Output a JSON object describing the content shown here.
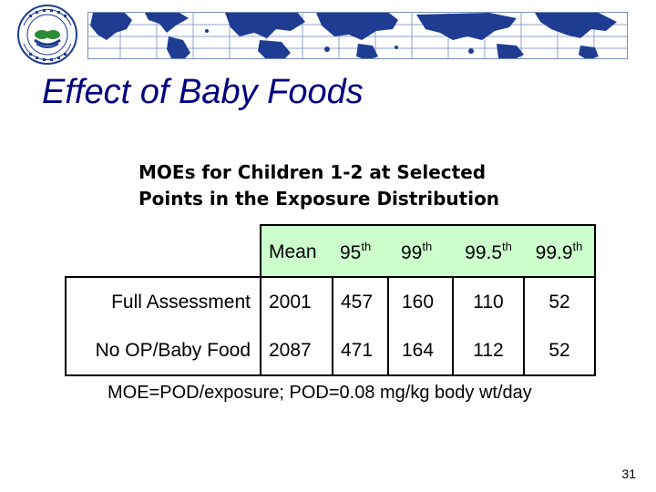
{
  "slide": {
    "title": "Effect of  Baby Foods",
    "page_number": "31"
  },
  "header": {
    "logo_icon": "epa-seal-icon",
    "banner_icon": "world-map-grid-icon",
    "colors": {
      "map_land": "#1f3c93",
      "map_grid": "#8da0cc",
      "title": "#000080"
    }
  },
  "table": {
    "caption_line1": "MOEs for Children 1-2 at Selected",
    "caption_line2": "Points in the Exposure Distribution",
    "header_fill": "#ccffcc",
    "columns": [
      {
        "base": "Mean",
        "sup": ""
      },
      {
        "base": "95",
        "sup": "th"
      },
      {
        "base": "99",
        "sup": "th"
      },
      {
        "base": "99.5",
        "sup": "th"
      },
      {
        "base": "99.9",
        "sup": "th"
      }
    ],
    "rows": [
      {
        "label": "Full Assessment",
        "values": [
          "2001",
          "457",
          "160",
          "110",
          "52"
        ]
      },
      {
        "label": "No OP/Baby Food",
        "values": [
          "2087",
          "471",
          "164",
          "112",
          "52"
        ]
      }
    ]
  },
  "footnote": {
    "formula": "MOE=POD/exposure; POD=0.08 mg/kg body wt/day"
  }
}
